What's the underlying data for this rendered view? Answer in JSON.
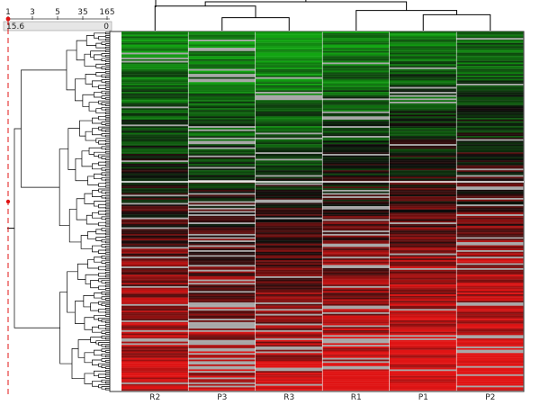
{
  "chart_data": {
    "type": "heatmap",
    "title": "",
    "columns": [
      "R2",
      "P3",
      "R3",
      "R1",
      "P1",
      "P2"
    ],
    "scale": {
      "ticks": [
        "1",
        "3",
        "5",
        "35",
        "165"
      ],
      "min_label": "15.6",
      "max_label": "0"
    },
    "row_count": 220,
    "value_range": [
      -1,
      1
    ],
    "colors": {
      "low": "#12a612",
      "mid": "#0b0b0b",
      "high": "#e01414",
      "missing": "#a8a8a8",
      "cutoff_line": "#e01414",
      "dendrogram": "#000000"
    },
    "column_dendrogram": [
      {
        "join": [
          "P3",
          "R3"
        ],
        "height": 0.45
      },
      {
        "join": [
          "R2",
          "P3+R3"
        ],
        "height": 0.85
      },
      {
        "join": [
          "P1",
          "P2"
        ],
        "height": 0.55
      },
      {
        "join": [
          "R1",
          "P1+P2"
        ],
        "height": 0.7
      },
      {
        "join": [
          "R2+P3+R3",
          "R1+P1+P2"
        ],
        "height": 1.0
      }
    ],
    "grid": false,
    "legend": "top-left"
  }
}
